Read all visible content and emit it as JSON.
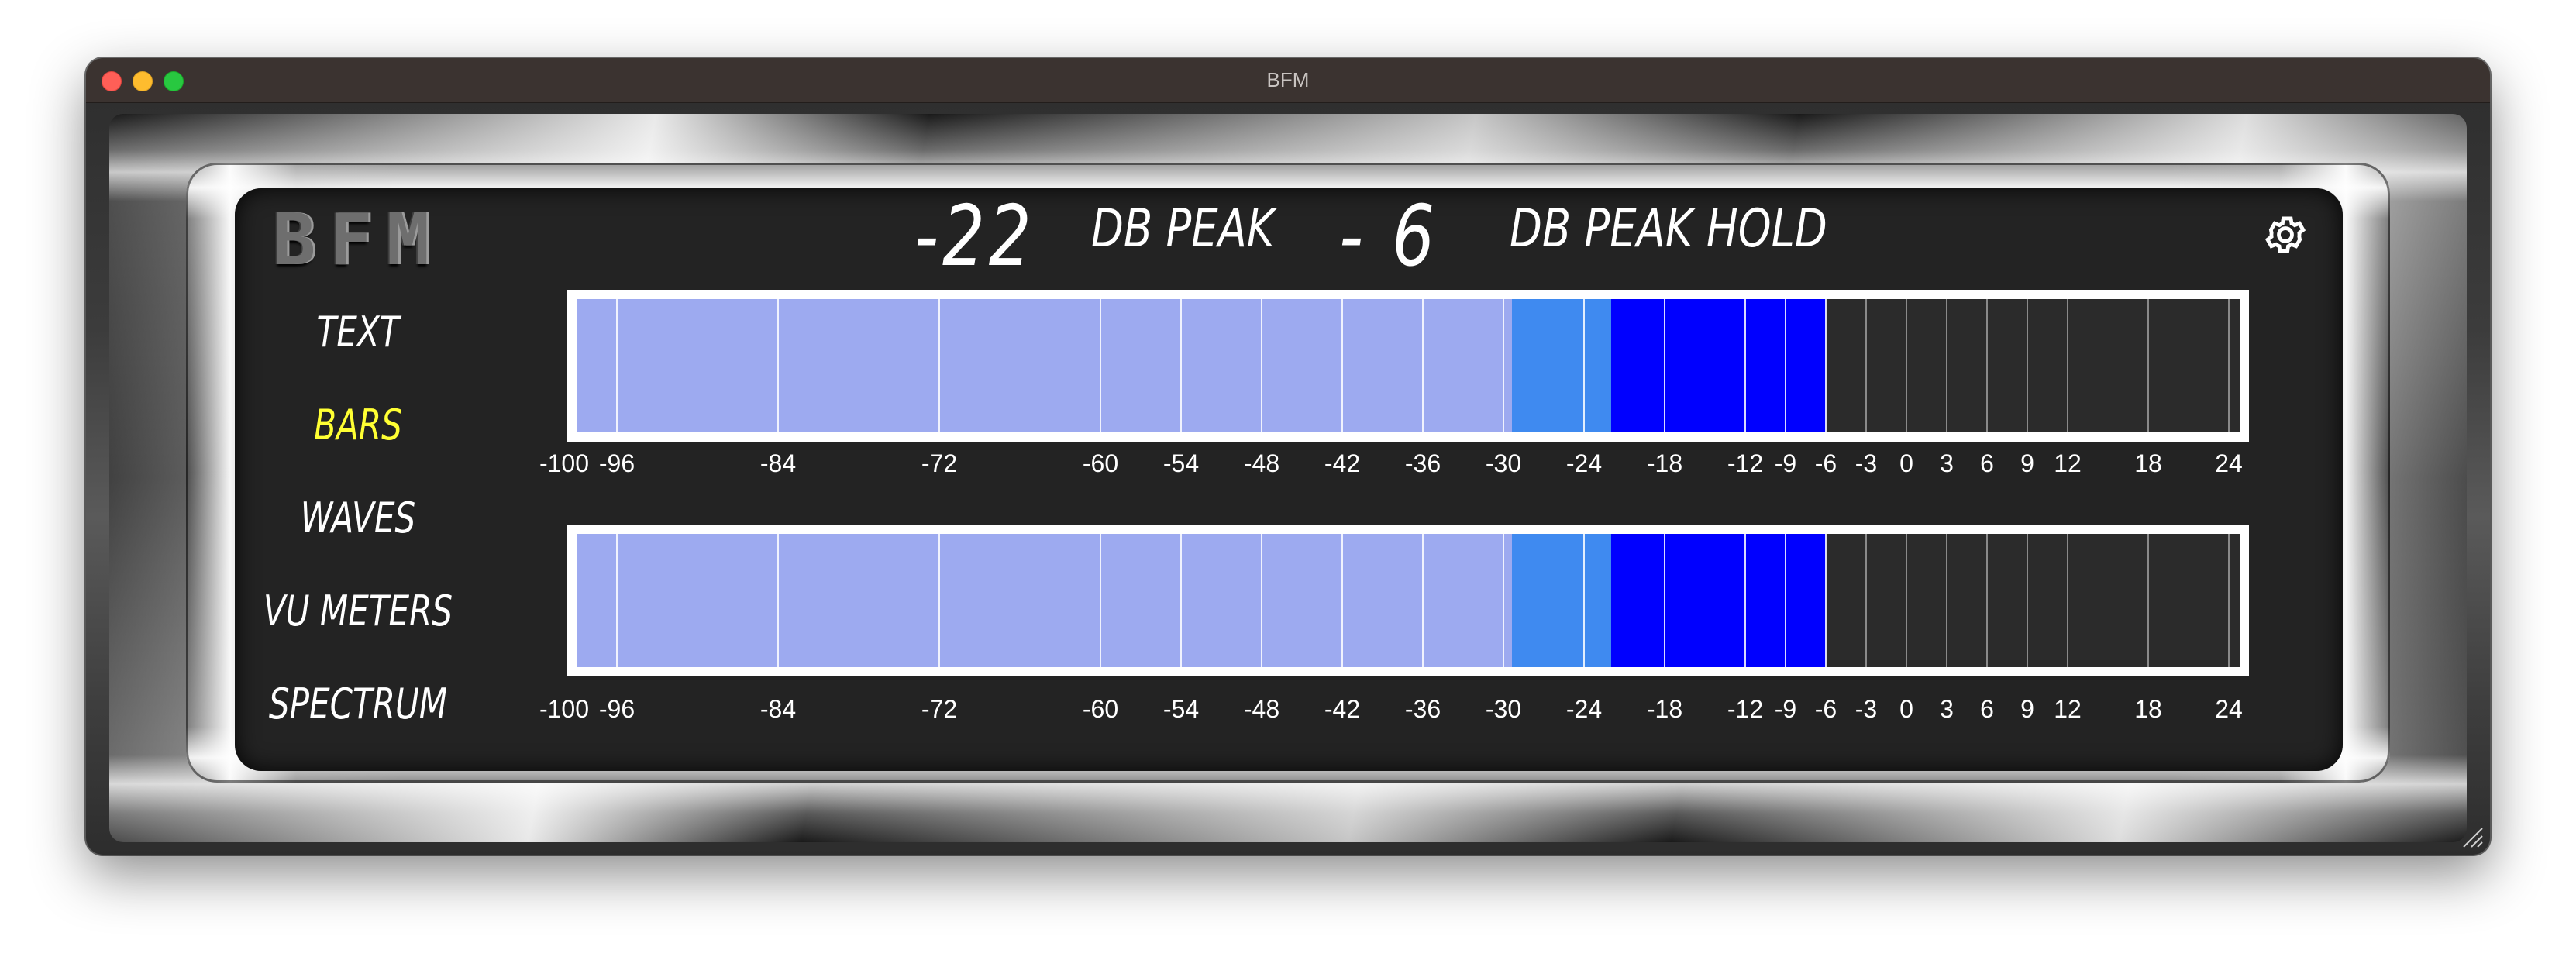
{
  "window": {
    "title": "BFM"
  },
  "logo": "BFM",
  "menu": {
    "items": [
      {
        "label": "TEXT",
        "active": false
      },
      {
        "label": "BARS",
        "active": true
      },
      {
        "label": "WAVES",
        "active": false
      },
      {
        "label": "VU METERS",
        "active": false
      },
      {
        "label": "SPECTRUM",
        "active": false
      }
    ]
  },
  "readout": {
    "peak_value": "-22",
    "peak_label": "DB PEAK",
    "hold_value": "- 6",
    "hold_label": "DB PEAK HOLD"
  },
  "icons": {
    "settings": "gear-icon",
    "resize": "resize-grip-icon"
  },
  "colors": {
    "active_menu": "#ffff33",
    "meter_light": "#9daaf0",
    "meter_mid": "#3f8af0",
    "meter_peak": "#0000ff",
    "meter_off": "#2b2b2b"
  },
  "meters": [
    {
      "level_db": -22,
      "hold_db": -6
    },
    {
      "level_db": -22,
      "hold_db": -6
    }
  ],
  "scale": {
    "min": -100,
    "max": 24,
    "ticks": [
      "-100",
      "-96",
      "-84",
      "-72",
      "-60",
      "-54",
      "-48",
      "-42",
      "-36",
      "-30",
      "-24",
      "-18",
      "-12",
      "-9",
      "-6",
      "-3",
      "0",
      "3",
      "6",
      "9",
      "12",
      "18",
      "24"
    ]
  }
}
